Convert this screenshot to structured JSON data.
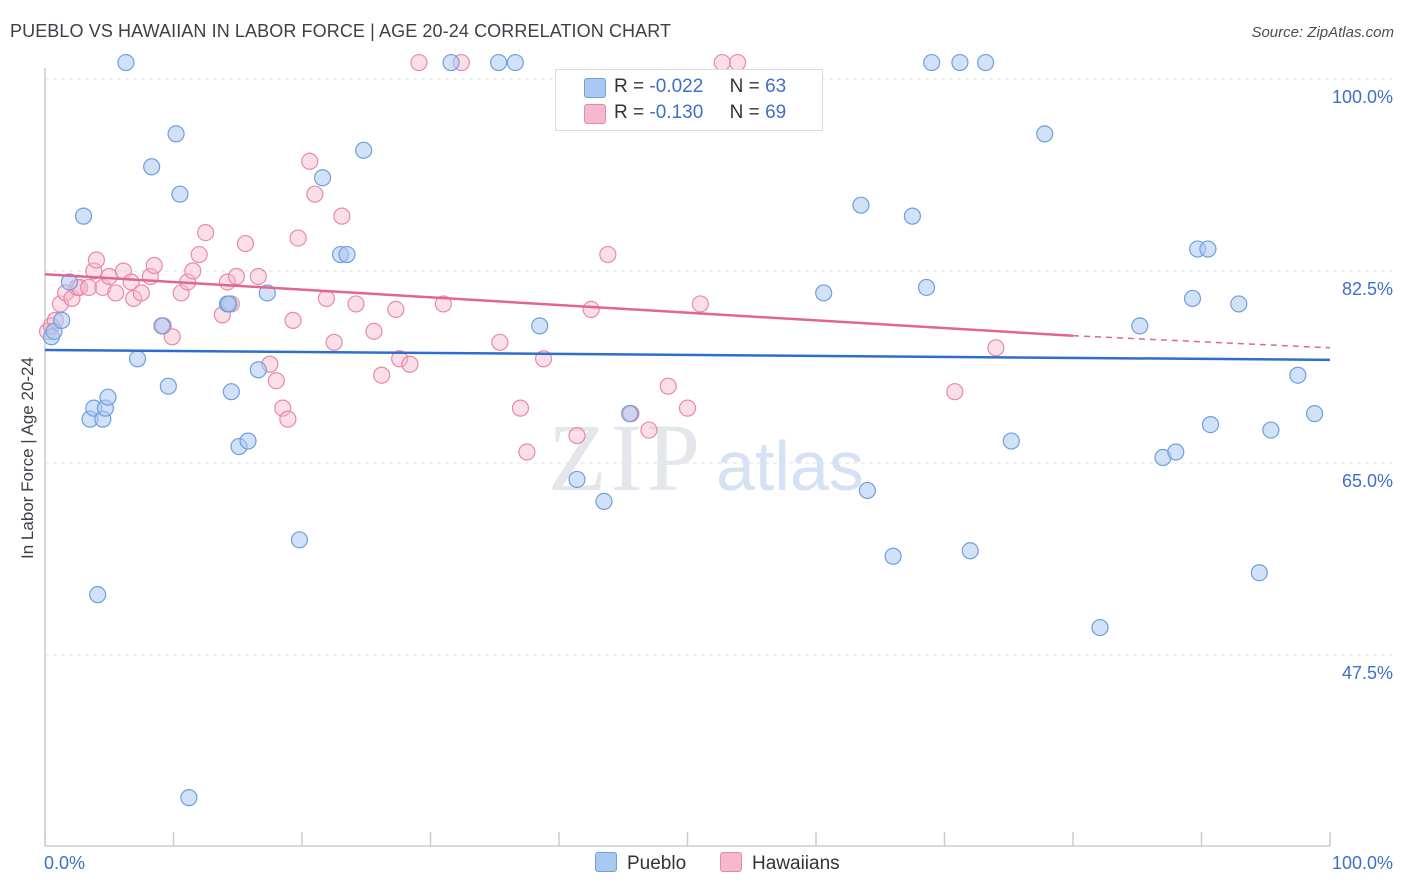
{
  "title": "PUEBLO VS HAWAIIAN IN LABOR FORCE | AGE 20-24 CORRELATION CHART",
  "source": "Source: ZipAtlas.com",
  "watermark": {
    "zip": "ZIP",
    "atlas": "atlas"
  },
  "legend": {
    "rows": [
      {
        "r_label": "R =",
        "r_value": "-0.022",
        "n_label": "N =",
        "n_value": "63",
        "color": "#a9c8f2"
      },
      {
        "r_label": "R =",
        "r_value": "-0.130",
        "n_label": "N =",
        "n_value": "69",
        "color": "#f6b8cc"
      }
    ]
  },
  "bottom_legend": [
    {
      "label": "Pueblo",
      "color": "#a9c8f2"
    },
    {
      "label": "Hawaiians",
      "color": "#f6b8cc"
    }
  ],
  "colors": {
    "pueblo_fill": "#a9c8f2",
    "pueblo_stroke": "#6f9fdc",
    "pueblo_line": "#2f6fcc",
    "hawaiian_fill": "#f6b8cc",
    "hawaiian_stroke": "#e889a8",
    "hawaiian_line": "#e0668f",
    "axis_label": "#3f6fc8",
    "grid": "#dde1e6"
  },
  "chart_data": {
    "type": "scatter",
    "title": "PUEBLO VS HAWAIIAN IN LABOR FORCE | AGE 20-24 CORRELATION CHART",
    "xlabel": "",
    "ylabel": "In Labor Force | Age 20-24",
    "xlim": [
      0,
      100
    ],
    "ylim": [
      30,
      100
    ],
    "x_tick_labels": [
      "0.0%",
      "100.0%"
    ],
    "y_ticks": [
      47.5,
      65.0,
      82.5,
      100.0
    ],
    "y_tick_labels": [
      "47.5%",
      "65.0%",
      "82.5%",
      "100.0%"
    ],
    "grid": true,
    "legend_position": "top-center",
    "series": [
      {
        "name": "Pueblo",
        "r": -0.022,
        "n": 63,
        "trend": {
          "x": [
            0,
            100
          ],
          "y": [
            75.3,
            74.4
          ]
        },
        "points": [
          [
            0.5,
            76.5
          ],
          [
            0.7,
            77.0
          ],
          [
            1.3,
            78.0
          ],
          [
            1.9,
            81.5
          ],
          [
            3.0,
            87.5
          ],
          [
            3.5,
            69.0
          ],
          [
            3.8,
            70.0
          ],
          [
            4.1,
            53.0
          ],
          [
            4.5,
            69.0
          ],
          [
            4.7,
            70.0
          ],
          [
            4.9,
            71.0
          ],
          [
            6.3,
            101.5
          ],
          [
            7.2,
            74.5
          ],
          [
            8.3,
            92.0
          ],
          [
            9.1,
            77.5
          ],
          [
            9.6,
            72.0
          ],
          [
            10.2,
            95.0
          ],
          [
            10.5,
            89.5
          ],
          [
            11.2,
            34.5
          ],
          [
            14.2,
            79.5
          ],
          [
            14.3,
            79.5
          ],
          [
            14.5,
            71.5
          ],
          [
            15.1,
            66.5
          ],
          [
            15.8,
            67.0
          ],
          [
            16.6,
            73.5
          ],
          [
            17.3,
            80.5
          ],
          [
            19.8,
            58.0
          ],
          [
            21.6,
            91.0
          ],
          [
            23.0,
            84.0
          ],
          [
            23.5,
            84.0
          ],
          [
            24.8,
            93.5
          ],
          [
            31.6,
            101.5
          ],
          [
            35.3,
            101.5
          ],
          [
            36.6,
            101.5
          ],
          [
            38.5,
            77.5
          ],
          [
            41.4,
            63.5
          ],
          [
            43.5,
            61.5
          ],
          [
            45.5,
            69.5
          ],
          [
            60.6,
            80.5
          ],
          [
            63.5,
            88.5
          ],
          [
            64.0,
            62.5
          ],
          [
            66.0,
            56.5
          ],
          [
            67.5,
            87.5
          ],
          [
            68.6,
            81.0
          ],
          [
            69.0,
            101.5
          ],
          [
            71.2,
            101.5
          ],
          [
            72.0,
            57.0
          ],
          [
            73.2,
            101.5
          ],
          [
            75.2,
            67.0
          ],
          [
            77.8,
            95.0
          ],
          [
            82.1,
            50.0
          ],
          [
            85.2,
            77.5
          ],
          [
            87.0,
            65.5
          ],
          [
            88.0,
            66.0
          ],
          [
            89.3,
            80.0
          ],
          [
            89.7,
            84.5
          ],
          [
            90.5,
            84.5
          ],
          [
            90.7,
            68.5
          ],
          [
            92.9,
            79.5
          ],
          [
            94.5,
            55.0
          ],
          [
            95.4,
            68.0
          ],
          [
            97.5,
            73.0
          ],
          [
            98.8,
            69.5
          ]
        ]
      },
      {
        "name": "Hawaiians",
        "r": -0.13,
        "n": 69,
        "trend": {
          "x": [
            0,
            80
          ],
          "y": [
            82.2,
            76.6
          ]
        },
        "trend_dashed": {
          "x": [
            80,
            100
          ],
          "y": [
            76.6,
            75.5
          ]
        },
        "points": [
          [
            0.2,
            77.0
          ],
          [
            0.5,
            77.5
          ],
          [
            0.8,
            78.0
          ],
          [
            1.2,
            79.5
          ],
          [
            1.6,
            80.5
          ],
          [
            2.1,
            80.0
          ],
          [
            2.5,
            81.0
          ],
          [
            2.7,
            81.0
          ],
          [
            3.4,
            81.0
          ],
          [
            3.8,
            82.5
          ],
          [
            4.0,
            83.5
          ],
          [
            4.5,
            81.0
          ],
          [
            5.0,
            82.0
          ],
          [
            5.5,
            80.5
          ],
          [
            6.1,
            82.5
          ],
          [
            6.7,
            81.5
          ],
          [
            6.9,
            80.0
          ],
          [
            7.5,
            80.5
          ],
          [
            8.2,
            82.0
          ],
          [
            8.5,
            83.0
          ],
          [
            9.2,
            77.5
          ],
          [
            9.9,
            76.5
          ],
          [
            10.6,
            80.5
          ],
          [
            11.1,
            81.5
          ],
          [
            11.5,
            82.5
          ],
          [
            12.0,
            84.0
          ],
          [
            12.5,
            86.0
          ],
          [
            13.8,
            78.5
          ],
          [
            14.2,
            81.5
          ],
          [
            14.5,
            79.5
          ],
          [
            14.9,
            82.0
          ],
          [
            15.6,
            85.0
          ],
          [
            16.6,
            82.0
          ],
          [
            17.5,
            74.0
          ],
          [
            18.0,
            72.5
          ],
          [
            18.5,
            70.0
          ],
          [
            18.9,
            69.0
          ],
          [
            19.3,
            78.0
          ],
          [
            19.7,
            85.5
          ],
          [
            20.6,
            92.5
          ],
          [
            21.0,
            89.5
          ],
          [
            21.9,
            80.0
          ],
          [
            22.5,
            76.0
          ],
          [
            23.1,
            87.5
          ],
          [
            24.2,
            79.5
          ],
          [
            25.6,
            77.0
          ],
          [
            26.2,
            73.0
          ],
          [
            27.3,
            79.0
          ],
          [
            27.6,
            74.5
          ],
          [
            28.4,
            74.0
          ],
          [
            29.1,
            101.5
          ],
          [
            31.0,
            79.5
          ],
          [
            32.4,
            101.5
          ],
          [
            35.4,
            76.0
          ],
          [
            37.0,
            70.0
          ],
          [
            37.5,
            66.0
          ],
          [
            38.8,
            74.5
          ],
          [
            41.4,
            67.5
          ],
          [
            42.5,
            79.0
          ],
          [
            43.8,
            84.0
          ],
          [
            45.6,
            69.5
          ],
          [
            47.0,
            68.0
          ],
          [
            48.5,
            72.0
          ],
          [
            50.0,
            70.0
          ],
          [
            51.0,
            79.5
          ],
          [
            52.7,
            101.5
          ],
          [
            53.9,
            101.5
          ],
          [
            70.8,
            71.5
          ],
          [
            74.0,
            75.5
          ]
        ]
      }
    ]
  }
}
